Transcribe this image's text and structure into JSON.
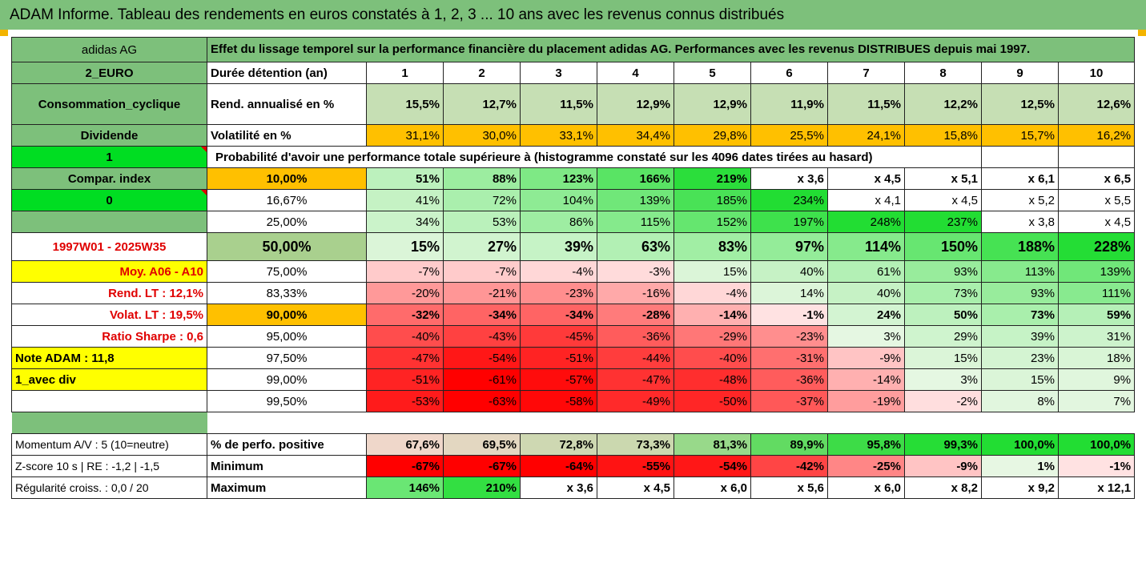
{
  "title": "ADAM Informe. Tableau des rendements en euros constatés à 1, 2, 3 ... 10 ans avec les revenus connus distribués",
  "header": {
    "fund_name": "adidas AG",
    "description": "Effet du lissage temporel sur la performance financière du placement adidas AG. Performances avec les revenus DISTRIBUES depuis mai 1997."
  },
  "info": {
    "currency": "2_EURO",
    "sector": "Consommation_cyclique",
    "dividend": "Dividende",
    "dividend_val": "1",
    "compar_index": "Compar. index",
    "compar_val": "0",
    "period": "1997W01 - 2025W35",
    "moy": "Moy. A06 - A10",
    "rend_lt": "Rend. LT :   12,1%",
    "volat_lt": "Volat. LT :   19,5%",
    "sharpe": "Ratio Sharpe :    0,6",
    "note": "Note ADAM : 11,8",
    "avec_div": "1_avec div",
    "momentum": "Momentum A/V : 5 (10=neutre)",
    "zscore": "Z-score 10 s  | RE : -1,2  | -1,5",
    "regularite": "Régularité croiss. : 0,0 / 20"
  },
  "labels": {
    "duree": "Durée détention (an)",
    "rend": "Rend. annualisé en %",
    "volat": "Volatilité en %",
    "proba": "Probabilité d'avoir une performance totale supérieure à (histogramme constaté sur les 4096 dates tirées au hasard)",
    "pct_pos": "% de perfo. positive",
    "minimum": "Minimum",
    "maximum": "Maximum"
  },
  "years": [
    "1",
    "2",
    "3",
    "4",
    "5",
    "6",
    "7",
    "8",
    "9",
    "10"
  ],
  "rend": [
    "15,5%",
    "12,7%",
    "11,5%",
    "12,9%",
    "12,9%",
    "11,9%",
    "11,5%",
    "12,2%",
    "12,5%",
    "12,6%"
  ],
  "volat": [
    "31,1%",
    "30,0%",
    "33,1%",
    "34,4%",
    "29,8%",
    "25,5%",
    "24,1%",
    "15,8%",
    "15,7%",
    "16,2%"
  ],
  "quantiles": [
    {
      "p": "10,00%",
      "v": [
        "51%",
        "88%",
        "123%",
        "166%",
        "219%",
        "x 3,6",
        "x 4,5",
        "x 5,1",
        "x 6,1",
        "x 6,5"
      ]
    },
    {
      "p": "16,67%",
      "v": [
        "41%",
        "72%",
        "104%",
        "139%",
        "185%",
        "234%",
        "x 4,1",
        "x 4,5",
        "x 5,2",
        "x 5,5"
      ]
    },
    {
      "p": "25,00%",
      "v": [
        "34%",
        "53%",
        "86%",
        "115%",
        "152%",
        "197%",
        "248%",
        "237%",
        "x 3,8",
        "x 4,5"
      ]
    },
    {
      "p": "50,00%",
      "v": [
        "15%",
        "27%",
        "39%",
        "63%",
        "83%",
        "97%",
        "114%",
        "150%",
        "188%",
        "228%"
      ]
    },
    {
      "p": "75,00%",
      "v": [
        "-7%",
        "-7%",
        "-4%",
        "-3%",
        "15%",
        "40%",
        "61%",
        "93%",
        "113%",
        "139%"
      ]
    },
    {
      "p": "83,33%",
      "v": [
        "-20%",
        "-21%",
        "-23%",
        "-16%",
        "-4%",
        "14%",
        "40%",
        "73%",
        "93%",
        "111%"
      ]
    },
    {
      "p": "90,00%",
      "v": [
        "-32%",
        "-34%",
        "-34%",
        "-28%",
        "-14%",
        "-1%",
        "24%",
        "50%",
        "73%",
        "59%"
      ]
    },
    {
      "p": "95,00%",
      "v": [
        "-40%",
        "-43%",
        "-45%",
        "-36%",
        "-29%",
        "-23%",
        "3%",
        "29%",
        "39%",
        "31%"
      ]
    },
    {
      "p": "97,50%",
      "v": [
        "-47%",
        "-54%",
        "-51%",
        "-44%",
        "-40%",
        "-31%",
        "-9%",
        "15%",
        "23%",
        "18%"
      ]
    },
    {
      "p": "99,00%",
      "v": [
        "-51%",
        "-61%",
        "-57%",
        "-47%",
        "-48%",
        "-36%",
        "-14%",
        "3%",
        "15%",
        "9%"
      ]
    },
    {
      "p": "99,50%",
      "v": [
        "-53%",
        "-63%",
        "-58%",
        "-49%",
        "-50%",
        "-37%",
        "-19%",
        "-2%",
        "8%",
        "7%"
      ]
    }
  ],
  "pct_pos": [
    "67,6%",
    "69,5%",
    "72,8%",
    "73,3%",
    "81,3%",
    "89,9%",
    "95,8%",
    "99,3%",
    "100,0%",
    "100,0%"
  ],
  "minimum": [
    "-67%",
    "-67%",
    "-64%",
    "-55%",
    "-54%",
    "-42%",
    "-25%",
    "-9%",
    "1%",
    "-1%"
  ],
  "maximum": [
    "146%",
    "210%",
    "x 3,6",
    "x 4,5",
    "x 6,0",
    "x 5,6",
    "x 6,0",
    "x 8,2",
    "x 9,2",
    "x 12,1"
  ],
  "colors": {
    "header_green": "#7dc07b",
    "rend_green": "#c6dfb4",
    "orange": "#ffc000",
    "lime": "#00dd22",
    "yellow": "#ffff00",
    "label_red": "#e00000"
  }
}
